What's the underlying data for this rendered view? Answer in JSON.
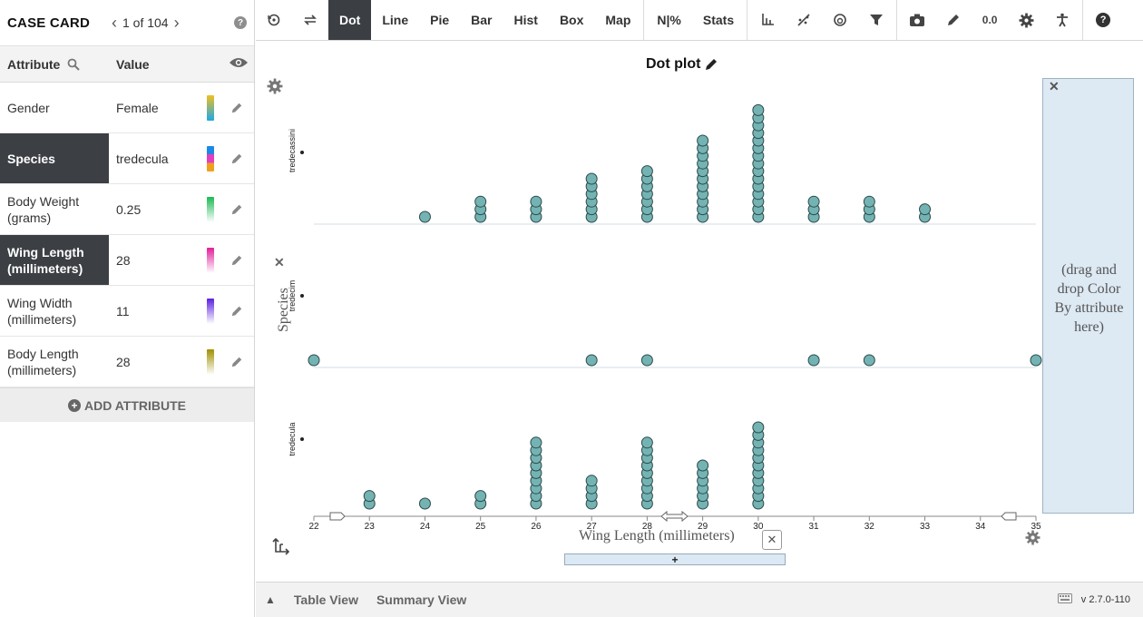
{
  "case_card": {
    "title": "CASE CARD",
    "nav_text": "1 of 104",
    "prev_icon": "chevron-left-icon",
    "next_icon": "chevron-right-icon",
    "help": "?",
    "header_attribute": "Attribute",
    "header_value": "Value",
    "rows": [
      {
        "name": "Gender",
        "value": "Female",
        "selected": false,
        "swatch": [
          "#f0c020",
          "#1ea8e8"
        ]
      },
      {
        "name": "Species",
        "value": "tredecula",
        "selected": true,
        "swatch": [
          "#1e88e5",
          "#e040c0",
          "#f0a020"
        ]
      },
      {
        "name": "Body Weight (grams)",
        "value": "0.25",
        "selected": false,
        "swatch": [
          "#1db954",
          "#ffffff"
        ]
      },
      {
        "name": "Wing Length (millimeters)",
        "value": "28",
        "selected": true,
        "swatch": [
          "#e0209a",
          "#ffffff"
        ]
      },
      {
        "name": "Wing Width (millimeters)",
        "value": "11",
        "selected": false,
        "swatch": [
          "#5b20e0",
          "#ffffff"
        ]
      },
      {
        "name": "Body Length (millimeters)",
        "value": "28",
        "selected": false,
        "swatch": [
          "#a09000",
          "#ffffff"
        ]
      }
    ],
    "add_attribute": "ADD ATTRIBUTE"
  },
  "toolbar": {
    "buttons": [
      {
        "label": "Dot",
        "active": true
      },
      {
        "label": "Line",
        "active": false
      },
      {
        "label": "Pie",
        "active": false
      },
      {
        "label": "Bar",
        "active": false
      },
      {
        "label": "Hist",
        "active": false
      },
      {
        "label": "Box",
        "active": false
      },
      {
        "label": "Map",
        "active": false
      },
      {
        "label": "N|%",
        "active": false
      },
      {
        "label": "Stats",
        "active": false
      }
    ],
    "help": "?"
  },
  "graph": {
    "title": "Dot plot",
    "x_label": "Wing Length (millimeters)",
    "y_label": "Species",
    "x_drop_text": "+",
    "legend_drop_text": "(drag and drop Color By attribute here)"
  },
  "chart_data": {
    "type": "scatter",
    "title": "Dot plot",
    "xlabel": "Wing Length (millimeters)",
    "ylabel": "Species",
    "xlim": [
      22,
      35
    ],
    "x_ticks": [
      22,
      23,
      24,
      25,
      26,
      27,
      28,
      29,
      30,
      31,
      32,
      33,
      34,
      35
    ],
    "point_color": "#74b3b3",
    "categories": [
      "tredecassini",
      "tredecim",
      "tredecula"
    ],
    "series": [
      {
        "name": "tredecassini",
        "counts": {
          "24": 1,
          "25": 3,
          "26": 3,
          "27": 6,
          "28": 7,
          "29": 11,
          "30": 15,
          "31": 3,
          "32": 3,
          "33": 2
        }
      },
      {
        "name": "tredecim",
        "counts": {
          "22": 1,
          "27": 1,
          "28": 1,
          "31": 1,
          "32": 1,
          "35": 1
        }
      },
      {
        "name": "tredecula",
        "counts": {
          "23": 2,
          "24": 1,
          "25": 2,
          "26": 9,
          "27": 4,
          "28": 9,
          "29": 6,
          "30": 11
        }
      }
    ]
  },
  "bottom": {
    "table_view": "Table View",
    "summary_view": "Summary View",
    "version": "v 2.7.0-110"
  }
}
